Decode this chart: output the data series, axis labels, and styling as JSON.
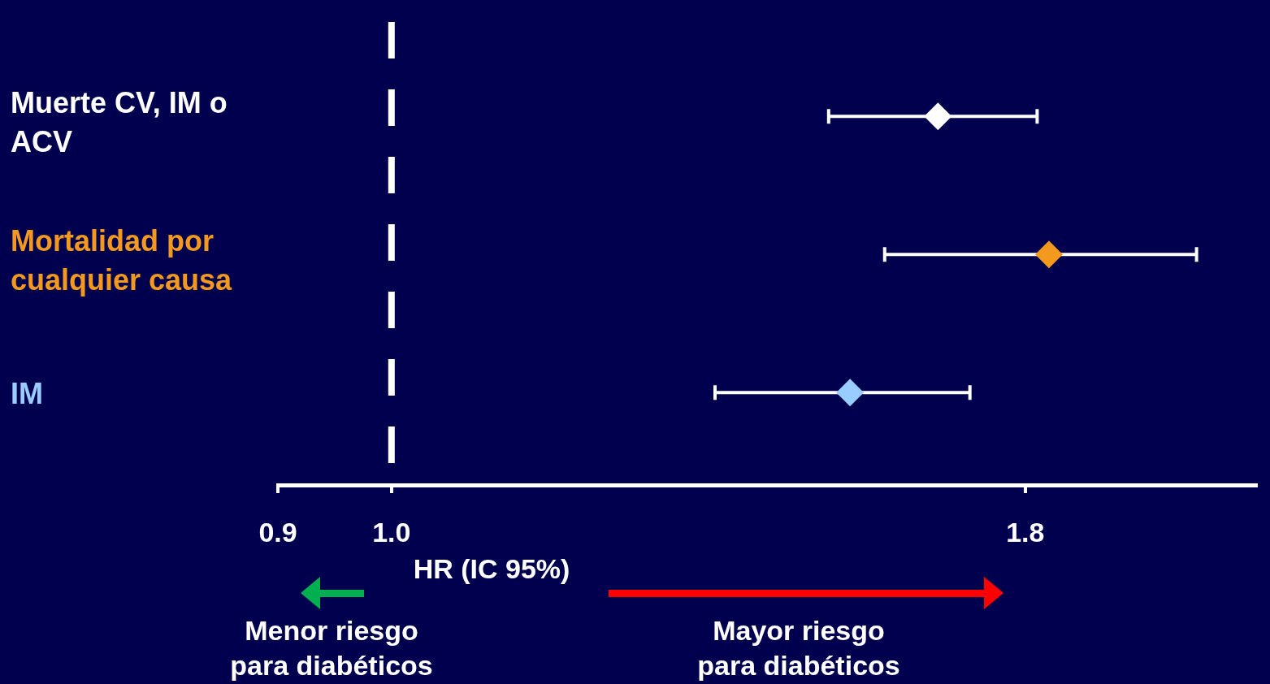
{
  "chart_data": {
    "type": "scatter",
    "orientation": "horizontal",
    "log": "x",
    "marker": "diamond",
    "categories": [
      "Muerte CV, IM o ACV",
      "Mortalidad por cualquier causa",
      "IM"
    ],
    "values": [
      1.66,
      1.84,
      1.53
    ],
    "errors": [
      [
        1.5,
        1.82
      ],
      [
        1.58,
        2.11
      ],
      [
        1.35,
        1.71
      ]
    ],
    "colors": [
      "#ffffff",
      "#f39a1e",
      "#99ccff"
    ],
    "xlim": [
      0.9,
      2.23
    ],
    "xticks": [
      0.9,
      {
        "value": 1,
        "label": "1.0"
      },
      1.8
    ],
    "xlabel": "HR (IC 95%)",
    "ref_lines": [
      {
        "axis": "x",
        "value": 1,
        "color": "#ffffff",
        "line_style": "dashed"
      }
    ],
    "annotations": [
      "Menor riesgo para diabéticos",
      "Mayor riesgo para diabéticos"
    ]
  }
}
